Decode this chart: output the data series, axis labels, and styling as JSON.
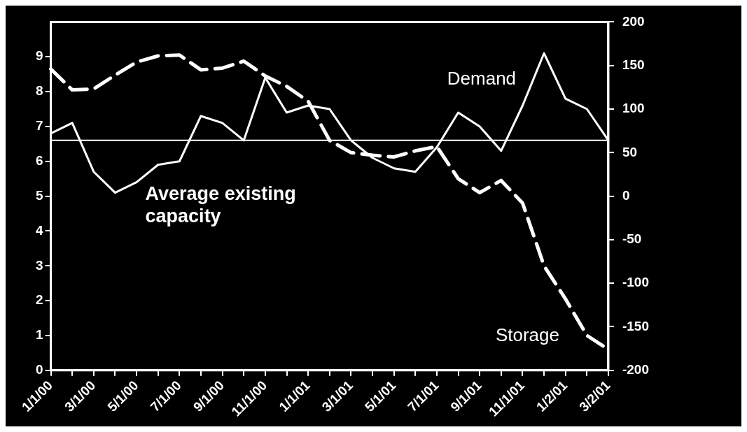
{
  "chart_data": {
    "type": "line",
    "categories": [
      "1/1/00",
      null,
      "3/1/00",
      null,
      "5/1/00",
      null,
      "7/1/00",
      null,
      "9/1/00",
      null,
      "11/1/00",
      null,
      "1/1/01",
      null,
      "3/1/01",
      null,
      "5/1/01",
      null,
      "7/1/01",
      null,
      "9/1/01",
      null,
      "11/1/01",
      null,
      "1/2/01",
      null,
      "3/2/01"
    ],
    "series": [
      {
        "name": "Demand",
        "color": "#ffffff",
        "line_style": "solid",
        "values": [
          6.8,
          7.1,
          5.7,
          5.1,
          5.4,
          5.9,
          6.0,
          7.3,
          7.1,
          6.6,
          8.4,
          7.4,
          7.6,
          7.5,
          6.6,
          6.1,
          5.8,
          5.7,
          6.4,
          7.4,
          7.0,
          6.3,
          7.6,
          9.1,
          7.8,
          7.5,
          6.6
        ]
      },
      {
        "name": "Storage",
        "color": "#ffffff",
        "line_style": "dashed",
        "axis": "y2",
        "values": [
          146,
          122,
          123,
          139,
          154,
          161,
          162,
          145,
          147,
          155,
          138,
          126,
          109,
          64,
          50,
          47,
          45,
          52,
          57,
          20,
          4,
          18,
          -8,
          -80,
          -118,
          -160,
          -176
        ]
      }
    ],
    "ylim": [
      0,
      10
    ],
    "yticks": [
      0,
      1,
      2,
      3,
      4,
      5,
      6,
      7,
      8,
      9
    ],
    "y2lim": [
      -200,
      200
    ],
    "y2ticks": [
      -200,
      -150,
      -100,
      -50,
      0,
      50,
      100,
      150,
      200
    ],
    "ref_lines": [
      {
        "axis": "y",
        "value": 6.6,
        "label": "Average existing capacity",
        "color": "#ffffff"
      }
    ],
    "grid": false,
    "legend": false,
    "marker": "none"
  }
}
